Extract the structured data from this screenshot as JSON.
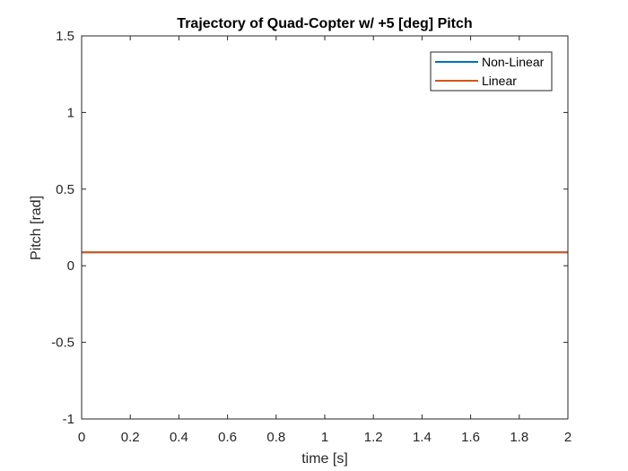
{
  "chart_data": {
    "type": "line",
    "title": "Trajectory of Quad-Copter w/ +5 [deg] Pitch",
    "xlabel": "time [s]",
    "ylabel": "Pitch [rad]",
    "xlim": [
      0,
      2
    ],
    "ylim": [
      -1,
      1.5
    ],
    "xticks": [
      0,
      0.2,
      0.4,
      0.6,
      0.8,
      1,
      1.2,
      1.4,
      1.6,
      1.8,
      2
    ],
    "xtick_labels": [
      "0",
      "0.2",
      "0.4",
      "0.6",
      "0.8",
      "1",
      "1.2",
      "1.4",
      "1.6",
      "1.8",
      "2"
    ],
    "yticks": [
      -1,
      -0.5,
      0,
      0.5,
      1,
      1.5
    ],
    "ytick_labels": [
      "-1",
      "-0.5",
      "0",
      "0.5",
      "1",
      "1.5"
    ],
    "grid": false,
    "legend_position": "top-right",
    "series": [
      {
        "name": "Non-Linear",
        "color": "#0072BD",
        "x": [
          0,
          2
        ],
        "y": [
          0.0873,
          0.0873
        ]
      },
      {
        "name": "Linear",
        "color": "#D95319",
        "x": [
          0,
          2
        ],
        "y": [
          0.0873,
          0.0873
        ]
      }
    ]
  }
}
